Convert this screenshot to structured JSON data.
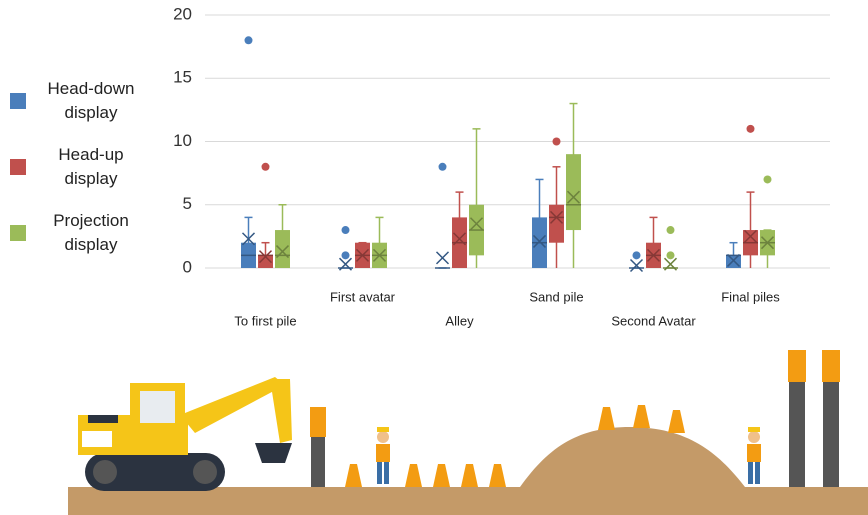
{
  "chart_data": {
    "type": "box",
    "categories": [
      "To first pile",
      "First avatar",
      "Alley",
      "Sand pile",
      "Second Avatar",
      "Final piles"
    ],
    "ylim": [
      0,
      20
    ],
    "yticks": [
      0,
      5,
      10,
      15,
      20
    ],
    "grid": true,
    "legend": "left",
    "series": [
      {
        "name": "Head-down display",
        "color": "#4a7ebb",
        "min": [
          0,
          0,
          0,
          0,
          0,
          0
        ],
        "q1": [
          0,
          0,
          0,
          0,
          0,
          0
        ],
        "median": [
          1,
          0,
          0,
          2,
          0,
          1
        ],
        "q3": [
          2,
          0,
          0,
          4,
          0,
          1
        ],
        "max": [
          4,
          0,
          0,
          7,
          0,
          2
        ],
        "mean": [
          2.3,
          0.3,
          0.8,
          2.1,
          0.2,
          0.6
        ],
        "outliers": [
          [
            18
          ],
          [
            1,
            3
          ],
          [
            8
          ],
          [],
          [
            1
          ],
          []
        ]
      },
      {
        "name": "Head-up display",
        "color": "#c0504d",
        "min": [
          0,
          0,
          0,
          0,
          0,
          0
        ],
        "q1": [
          0,
          0,
          0,
          2,
          0,
          1
        ],
        "median": [
          1,
          1,
          2,
          4,
          1,
          2
        ],
        "q3": [
          1,
          2,
          4,
          5,
          2,
          3
        ],
        "max": [
          2,
          2,
          6,
          8,
          4,
          6
        ],
        "mean": [
          0.9,
          1,
          2.3,
          4,
          1,
          2.5
        ],
        "outliers": [
          [
            8
          ],
          [],
          [],
          [
            10
          ],
          [],
          [
            11
          ]
        ]
      },
      {
        "name": "Projection display",
        "color": "#9bbb59",
        "min": [
          0,
          0,
          0,
          0,
          0,
          0
        ],
        "q1": [
          0,
          0,
          1,
          3,
          0,
          1
        ],
        "median": [
          1,
          1,
          3,
          5,
          0,
          2
        ],
        "q3": [
          3,
          2,
          5,
          9,
          0,
          3
        ],
        "max": [
          5,
          4,
          11,
          13,
          0,
          3
        ],
        "mean": [
          1.3,
          1,
          3.5,
          5.6,
          0.3,
          2
        ],
        "outliers": [
          [],
          [],
          [],
          [],
          [
            1,
            3
          ],
          [
            7
          ]
        ]
      }
    ]
  }
}
